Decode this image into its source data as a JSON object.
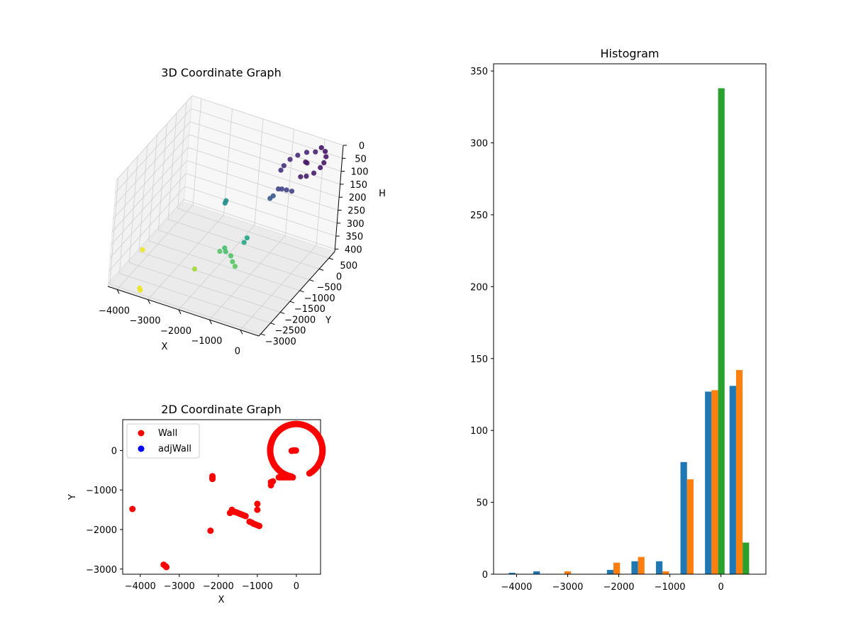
{
  "chart_data": [
    {
      "type": "scatter",
      "projection": "3d",
      "title": "3D Coordinate Graph",
      "xlabel": "X",
      "ylabel": "Y",
      "zlabel": "H",
      "xlim": [
        -4300,
        600
      ],
      "ylim": [
        -3100,
        800
      ],
      "zlim": [
        0,
        410
      ],
      "z_axis_inverted": true,
      "colormap": "viridis",
      "xticks": [
        -4000,
        -3000,
        -2000,
        -1000,
        0
      ],
      "xtick_labels": [
        "−4000",
        "−3000",
        "−2000",
        "−1000",
        "0"
      ],
      "yticks": [
        500,
        0,
        -500,
        -1000,
        -1500,
        -2000,
        -2500,
        -3000
      ],
      "ytick_labels": [
        "500",
        "0",
        "−500",
        "−1000",
        "−1500",
        "−2000",
        "−2500",
        "−3000"
      ],
      "zticks": [
        0,
        50,
        100,
        150,
        200,
        250,
        300,
        350,
        400
      ],
      "ztick_labels": [
        "0",
        "50",
        "100",
        "150",
        "200",
        "250",
        "300",
        "350",
        "400"
      ],
      "points": [
        {
          "x": 0,
          "y": 650,
          "h": 20
        },
        {
          "x": 170,
          "y": 580,
          "h": 22
        },
        {
          "x": 300,
          "y": 420,
          "h": 24
        },
        {
          "x": 370,
          "y": 200,
          "h": 26
        },
        {
          "x": 380,
          "y": 0,
          "h": 28
        },
        {
          "x": 330,
          "y": -250,
          "h": 30
        },
        {
          "x": 200,
          "y": -430,
          "h": 32
        },
        {
          "x": 60,
          "y": -500,
          "h": 34
        },
        {
          "x": -150,
          "y": 600,
          "h": 38
        },
        {
          "x": -380,
          "y": 520,
          "h": 42
        },
        {
          "x": -560,
          "y": 350,
          "h": 46
        },
        {
          "x": -680,
          "y": 150,
          "h": 50
        },
        {
          "x": -720,
          "y": -100,
          "h": 55
        },
        {
          "x": -720,
          "y": -250,
          "h": 60
        },
        {
          "x": -100,
          "y": 0,
          "h": 25
        },
        {
          "x": -50,
          "y": 0,
          "h": 27
        },
        {
          "x": -80,
          "y": -680,
          "h": 80
        },
        {
          "x": -250,
          "y": -680,
          "h": 82
        },
        {
          "x": -400,
          "y": -680,
          "h": 84
        },
        {
          "x": -500,
          "y": -700,
          "h": 86
        },
        {
          "x": -600,
          "y": -780,
          "h": 110
        },
        {
          "x": -650,
          "y": -860,
          "h": 115
        },
        {
          "x": -2150,
          "y": -650,
          "h": 200
        },
        {
          "x": -2150,
          "y": -700,
          "h": 205
        },
        {
          "x": -1000,
          "y": -1350,
          "h": 240
        },
        {
          "x": -1000,
          "y": -1500,
          "h": 245
        },
        {
          "x": -1600,
          "y": -1500,
          "h": 290
        },
        {
          "x": -1500,
          "y": -1600,
          "h": 292
        },
        {
          "x": -1300,
          "y": -1650,
          "h": 296
        },
        {
          "x": -1150,
          "y": -1800,
          "h": 300
        },
        {
          "x": -1000,
          "y": -1900,
          "h": 304
        },
        {
          "x": -1700,
          "y": -1580,
          "h": 300
        },
        {
          "x": -2200,
          "y": -2030,
          "h": 350
        },
        {
          "x": -4200,
          "y": -1480,
          "h": 400
        },
        {
          "x": -3400,
          "y": -2900,
          "h": 398
        },
        {
          "x": -3350,
          "y": -2950,
          "h": 400
        }
      ]
    },
    {
      "type": "scatter",
      "title": "2D Coordinate Graph",
      "xlabel": "X",
      "ylabel": "Y",
      "xlim": [
        -4450,
        620
      ],
      "ylim": [
        -3130,
        780
      ],
      "xticks": [
        -4000,
        -3000,
        -2000,
        -1000,
        0
      ],
      "xtick_labels": [
        "−4000",
        "−3000",
        "−2000",
        "−1000",
        "0"
      ],
      "yticks": [
        0,
        -1000,
        -2000,
        -3000
      ],
      "ytick_labels": [
        "0",
        "−1000",
        "−2000",
        "−3000"
      ],
      "legend_position": "top-left",
      "series": [
        {
          "name": "Wall",
          "color": "#ff0000",
          "arc": {
            "center": [
              0,
              0
            ],
            "radius": 670,
            "ccw_from_deg": -60,
            "ccw_to_deg": 260
          },
          "points": [
            [
              -120,
              -10
            ],
            [
              -90,
              0
            ],
            [
              -60,
              5
            ],
            [
              -40,
              0
            ],
            [
              -10,
              0
            ],
            [
              -90,
              -680
            ],
            [
              -170,
              -680
            ],
            [
              -250,
              -680
            ],
            [
              -330,
              -680
            ],
            [
              -400,
              -680
            ],
            [
              -450,
              -680
            ],
            [
              -600,
              -780
            ],
            [
              -650,
              -800
            ],
            [
              -650,
              -880
            ],
            [
              -2150,
              -650
            ],
            [
              -2150,
              -690
            ],
            [
              -2150,
              -720
            ],
            [
              -1650,
              -1500
            ],
            [
              -1600,
              -1550
            ],
            [
              -1550,
              -1560
            ],
            [
              -1500,
              -1580
            ],
            [
              -1450,
              -1600
            ],
            [
              -1400,
              -1620
            ],
            [
              -1350,
              -1640
            ],
            [
              -1300,
              -1660
            ],
            [
              -1700,
              -1580
            ],
            [
              -1200,
              -1800
            ],
            [
              -1150,
              -1820
            ],
            [
              -1100,
              -1850
            ],
            [
              -1050,
              -1870
            ],
            [
              -1000,
              -1890
            ],
            [
              -950,
              -1910
            ],
            [
              -1000,
              -1350
            ],
            [
              -1000,
              -1500
            ],
            [
              -2200,
              -2030
            ],
            [
              -4200,
              -1480
            ],
            [
              -3400,
              -2890
            ],
            [
              -3350,
              -2930
            ],
            [
              -3330,
              -2950
            ]
          ]
        },
        {
          "name": "adjWall",
          "color": "#0000ff",
          "points": []
        }
      ]
    },
    {
      "type": "bar",
      "title": "Histogram",
      "xlim": [
        -4450,
        880
      ],
      "ylim": [
        0,
        355
      ],
      "xticks": [
        -4000,
        -3000,
        -2000,
        -1000,
        0
      ],
      "xtick_labels": [
        "−4000",
        "−3000",
        "−2000",
        "−1000",
        "0"
      ],
      "yticks": [
        0,
        50,
        100,
        150,
        200,
        250,
        300,
        350
      ],
      "ytick_labels": [
        "0",
        "50",
        "100",
        "150",
        "200",
        "250",
        "300",
        "350"
      ],
      "bin_edges": [
        -4200,
        -3720,
        -3240,
        -2760,
        -2280,
        -1800,
        -1320,
        -840,
        -360,
        120,
        600
      ],
      "series": [
        {
          "color": "#1f77b4",
          "values": [
            1,
            2,
            0,
            0,
            3,
            9,
            9,
            78,
            127,
            131
          ]
        },
        {
          "color": "#ff7f0e",
          "values": [
            0,
            0,
            2,
            0,
            8,
            12,
            2,
            66,
            128,
            142
          ]
        },
        {
          "color": "#2ca02c",
          "values": [
            0,
            0,
            0,
            0,
            0,
            0,
            0,
            0,
            338,
            22
          ]
        }
      ]
    }
  ]
}
